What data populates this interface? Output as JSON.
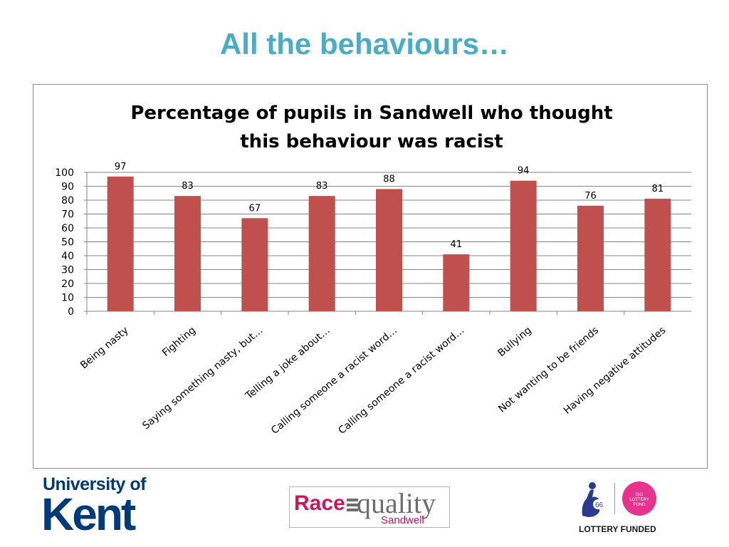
{
  "slide": {
    "title": "All the behaviours…"
  },
  "chart_data": {
    "type": "bar",
    "title": "Percentage of pupils in Sandwell who thought this behaviour was racist",
    "title_lines": [
      "Percentage of pupils in Sandwell who thought",
      "this behaviour was racist"
    ],
    "categories": [
      "Being nasty",
      "Fighting",
      "Saying something nasty, but…",
      "Telling a joke about…",
      "Calling someone a racist word…",
      "Calling someone a racist word…",
      "Bullying",
      "Not wanting to be friends",
      "Having negative attitudes"
    ],
    "values": [
      97,
      83,
      67,
      83,
      88,
      41,
      94,
      76,
      81
    ],
    "ylim": [
      0,
      100
    ],
    "yticks": [
      0,
      10,
      20,
      30,
      40,
      50,
      60,
      70,
      80,
      90,
      100
    ],
    "grid": true,
    "legend": "none",
    "bar_color": "#c0504d",
    "xlabel": "",
    "ylabel": ""
  },
  "logos": {
    "kent": {
      "line1": "University of",
      "line2": "Kent"
    },
    "race_equality": {
      "race": "Race",
      "quality": "quality",
      "sandwell": "Sandwell"
    },
    "lottery": {
      "funded": "LOTTERY FUNDED",
      "badge_text": "BIG LOTTERY FUND"
    }
  }
}
